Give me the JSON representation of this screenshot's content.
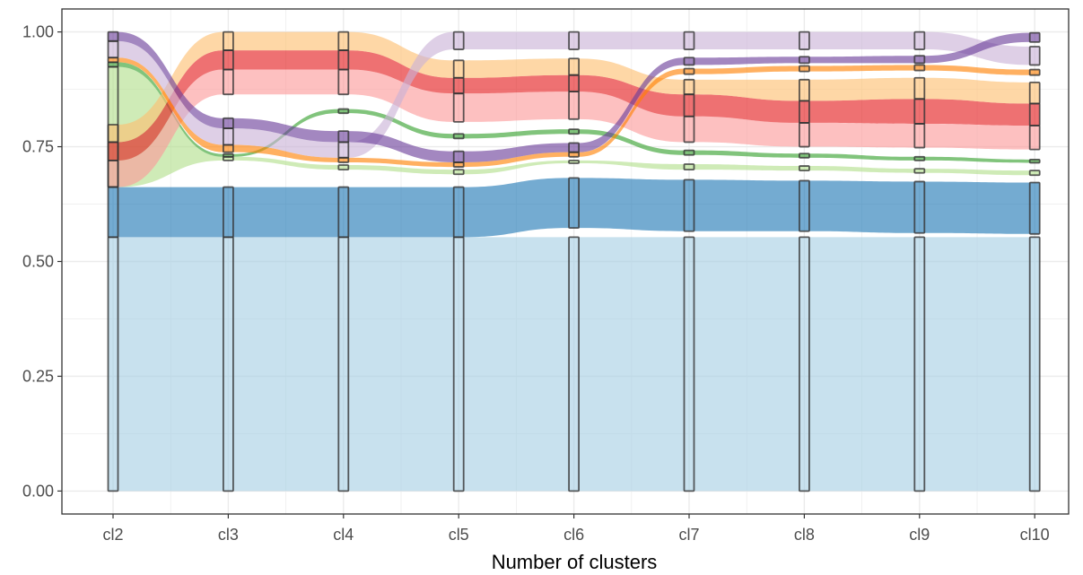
{
  "chart_data": {
    "type": "area",
    "title": "",
    "xlabel": "Number of clusters",
    "ylabel": "",
    "categories": [
      "cl2",
      "cl3",
      "cl4",
      "cl5",
      "cl6",
      "cl7",
      "cl8",
      "cl9",
      "cl10"
    ],
    "ylim": [
      -0.05,
      1.05
    ],
    "yticks": [
      0.0,
      0.25,
      0.5,
      0.75,
      1.0
    ],
    "ytick_labels": [
      "0.00",
      "0.25",
      "0.50",
      "0.75",
      "1.00"
    ],
    "grid": true,
    "legend": "none",
    "series": [
      {
        "color": "#A6CEE3",
        "lower": [
          0,
          0,
          0,
          0,
          0,
          0,
          0,
          0,
          0
        ],
        "upper": [
          0.553,
          0.553,
          0.553,
          0.553,
          0.553,
          0.553,
          0.553,
          0.553,
          0.553
        ]
      },
      {
        "color": "#1F78B4",
        "lower": [
          0.553,
          0.553,
          0.553,
          0.553,
          0.573,
          0.566,
          0.566,
          0.562,
          0.56
        ],
        "upper": [
          0.662,
          0.662,
          0.662,
          0.662,
          0.682,
          0.678,
          0.676,
          0.674,
          0.672
        ]
      },
      {
        "color": "#B2DF8A",
        "lower": [
          0.662,
          0.72,
          0.7,
          0.69,
          0.714,
          0.7,
          0.698,
          0.693,
          0.688
        ],
        "upper": [
          0.924,
          0.728,
          0.71,
          0.7,
          0.72,
          0.712,
          0.708,
          0.702,
          0.698
        ]
      },
      {
        "color": "#33A02C",
        "lower": [
          0.924,
          0.728,
          0.823,
          0.768,
          0.778,
          0.732,
          0.726,
          0.72,
          0.715
        ],
        "upper": [
          0.934,
          0.734,
          0.832,
          0.778,
          0.788,
          0.742,
          0.735,
          0.728,
          0.722
        ]
      },
      {
        "color": "#FB9A99",
        "lower": [
          0.662,
          0.864,
          0.864,
          0.804,
          0.81,
          0.76,
          0.75,
          0.748,
          0.744
        ],
        "upper": [
          0.72,
          0.918,
          0.918,
          0.866,
          0.87,
          0.816,
          0.802,
          0.8,
          0.796
        ]
      },
      {
        "color": "#E31A1C",
        "lower": [
          0.72,
          0.918,
          0.918,
          0.866,
          0.87,
          0.816,
          0.802,
          0.8,
          0.796
        ],
        "upper": [
          0.76,
          0.96,
          0.96,
          0.9,
          0.906,
          0.864,
          0.85,
          0.854,
          0.844
        ]
      },
      {
        "color": "#FDBF6F",
        "lower": [
          0.76,
          0.96,
          0.96,
          0.9,
          0.906,
          0.864,
          0.85,
          0.854,
          0.844
        ],
        "upper": [
          0.798,
          1.0,
          1.0,
          0.938,
          0.942,
          0.896,
          0.896,
          0.9,
          0.89
        ]
      },
      {
        "color": "#FF7F00",
        "lower": [
          0.934,
          0.738,
          0.716,
          0.706,
          0.728,
          0.908,
          0.914,
          0.916,
          0.906
        ],
        "upper": [
          0.944,
          0.754,
          0.726,
          0.716,
          0.738,
          0.92,
          0.926,
          0.928,
          0.918
        ]
      },
      {
        "color": "#CAB2D6",
        "lower": [
          0.944,
          0.754,
          0.726,
          0.962,
          0.962,
          0.962,
          0.962,
          0.962,
          0.928
        ],
        "upper": [
          0.98,
          0.79,
          0.76,
          1.0,
          1.0,
          1.0,
          1.0,
          1.0,
          0.968
        ]
      },
      {
        "color": "#6A3D9A",
        "lower": [
          0.98,
          0.79,
          0.76,
          0.716,
          0.738,
          0.928,
          0.932,
          0.932,
          0.978
        ],
        "upper": [
          1.0,
          0.812,
          0.784,
          0.74,
          0.758,
          0.944,
          0.946,
          0.948,
          0.998
        ]
      }
    ]
  }
}
